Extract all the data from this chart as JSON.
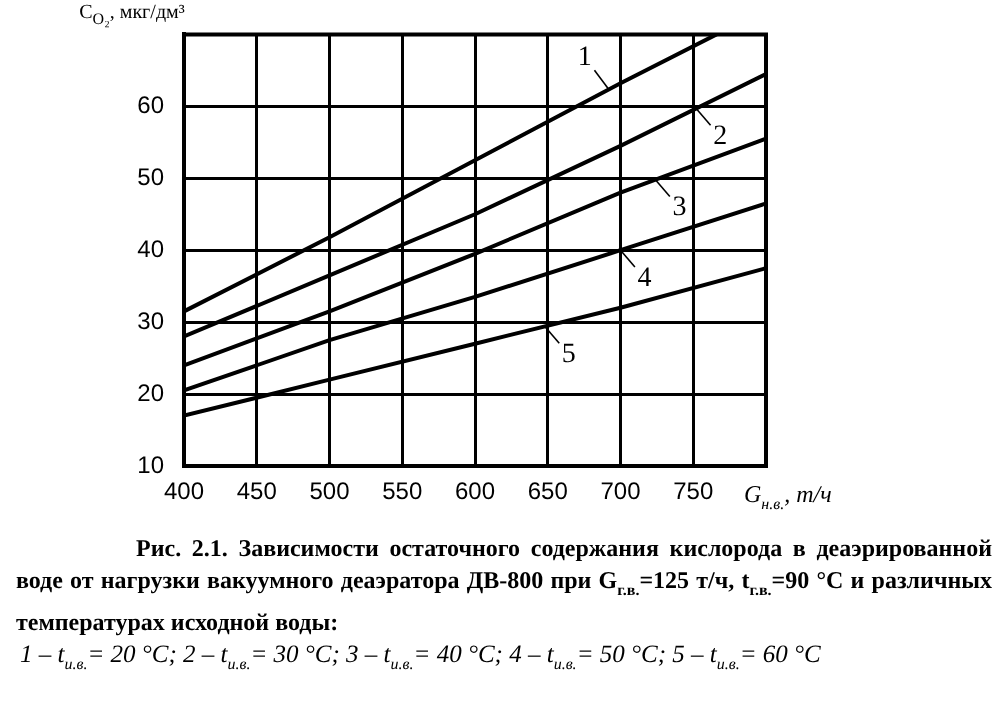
{
  "chart_data": {
    "type": "line",
    "ylabel": "C$_{O₂}$, мкг/дм³",
    "xlabel": "G$_{н.в.}$, т/ч",
    "x": [
      400,
      500,
      600,
      700,
      800
    ],
    "series": [
      {
        "name": "1",
        "color": "#000000",
        "x": [
          400,
          500,
          600,
          700,
          766
        ],
        "values": [
          31.5,
          41.8,
          52.5,
          63.2,
          70
        ]
      },
      {
        "name": "2",
        "color": "#000000",
        "values": [
          28,
          36.5,
          45,
          54.5,
          64.5
        ]
      },
      {
        "name": "3",
        "color": "#000000",
        "values": [
          24,
          31.5,
          39.5,
          48,
          55.5
        ]
      },
      {
        "name": "4",
        "color": "#000000",
        "values": [
          20.5,
          27.5,
          33.5,
          40,
          46.5
        ]
      },
      {
        "name": "5",
        "color": "#000000",
        "values": [
          17,
          22,
          27,
          32,
          37.5
        ]
      }
    ],
    "xlim": [
      400,
      800
    ],
    "ylim": [
      10,
      70
    ],
    "xticks": [
      400,
      450,
      500,
      550,
      600,
      650,
      700,
      750
    ],
    "yticks": [
      10,
      20,
      30,
      40,
      50,
      60
    ],
    "grid": true,
    "legend": "right",
    "marker": "none",
    "line_style": "solid",
    "annotations": [
      "Рис. 2.1. Зависимости остаточного содержания кислорода в деаэрированной воде от нагрузки вакуумного деаэратора ДВ-800 при G$_{г.в.}$=125 т/ч, t$_{г.в.}$=90 °C и различных температурах исходной воды:",
      "1 – t$_{и.в.}$= 20 °C; 2 – t$_{и.в.}$= 30 °C; 3 – t$_{и.в.}$= 40 °C; 4 – t$_{и.в.}$= 50 °C; 5 – t$_{и.в.}$= 60 °C"
    ]
  }
}
